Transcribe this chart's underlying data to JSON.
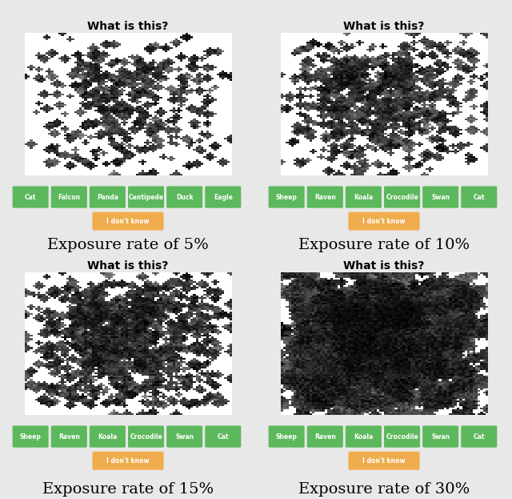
{
  "background_color": "#e8e8e8",
  "panel_bg": "#e0e0e0",
  "image_bg": "#ffffff",
  "title": "What is this?",
  "title_fontsize": 10,
  "title_fontweight": "bold",
  "button_green": "#5cb85c",
  "button_orange": "#f0ad4e",
  "button_text_color": "#ffffff",
  "button_fontsize": 5.5,
  "caption_fontsize": 14,
  "panels": [
    {
      "label": "Exposure rate of 5%",
      "exposure": 0.05,
      "buttons": [
        "Cat",
        "Falcon",
        "Panda",
        "Centipede",
        "Duck",
        "Eagle"
      ],
      "seed": 42
    },
    {
      "label": "Exposure rate of 10%",
      "exposure": 0.1,
      "buttons": [
        "Sheep",
        "Raven",
        "Koala",
        "Crocodile",
        "Swan",
        "Cat"
      ],
      "seed": 123
    },
    {
      "label": "Exposure rate of 15%",
      "exposure": 0.15,
      "buttons": [
        "Sheep",
        "Raven",
        "Koala",
        "Crocodile",
        "Swan",
        "Cat"
      ],
      "seed": 42
    },
    {
      "label": "Exposure rate of 30%",
      "exposure": 0.3,
      "buttons": [
        "Sheep",
        "Raven",
        "Koala",
        "Crocodile",
        "Swan",
        "Cat"
      ],
      "seed": 123
    }
  ]
}
